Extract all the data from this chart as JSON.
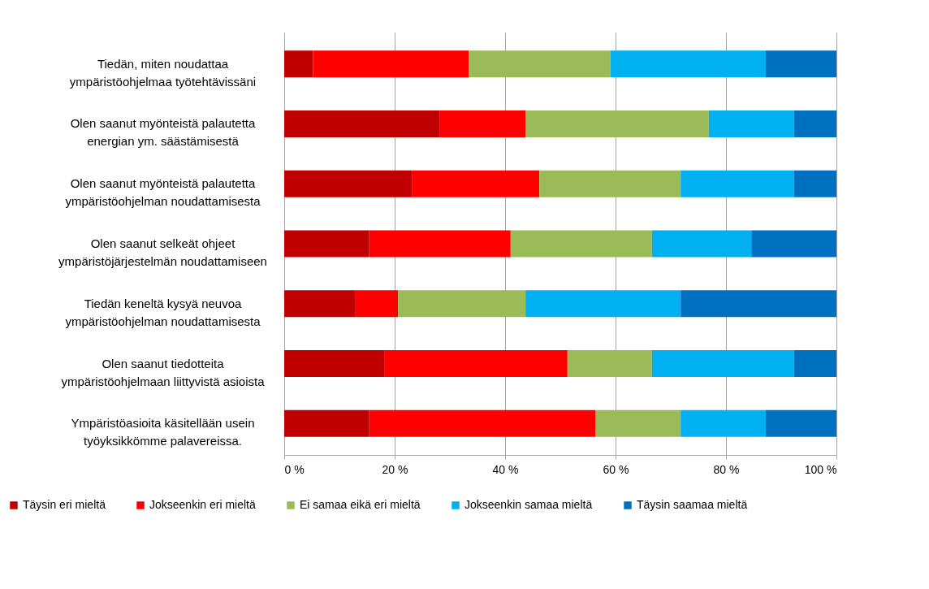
{
  "chart_data": {
    "type": "bar",
    "orientation": "horizontal",
    "stacked": true,
    "categories": [
      "Tiedän, miten noudattaa ympäristöohjelmaa työtehtävissäni",
      "Olen saanut myönteistä palautetta energian ym. säästämisestä",
      "Olen saanut myönteistä palautetta ympäristöohjelman noudattamisesta",
      "Olen saanut selkeät ohjeet ympäristöjärjestelmän noudattamiseen",
      "Tiedän keneltä kysyä neuvoa ympäristöohjelman noudattamisesta",
      "Olen saanut tiedotteita ympäristöohjelmaan liittyvistä asioista",
      "Ympäristöasioita käsitellään usein työyksikkömme palavereissa."
    ],
    "series": [
      {
        "name": "Täysin eri mieltä",
        "color": "#c00000",
        "values": [
          5.2,
          28.1,
          23.2,
          15.4,
          12.8,
          18.1,
          15.4
        ]
      },
      {
        "name": "Jokseenkin eri mieltä",
        "color": "#ff0000",
        "values": [
          28.2,
          15.6,
          23.0,
          25.6,
          7.8,
          33.2,
          41.0
        ]
      },
      {
        "name": "Ei samaa eikä eri mieltä",
        "color": "#9bbb59",
        "values": [
          25.7,
          33.2,
          25.6,
          25.6,
          23.1,
          15.3,
          15.4
        ]
      },
      {
        "name": "Jokseenkin samaa mieltä",
        "color": "#00b0f0",
        "values": [
          28.1,
          15.4,
          20.5,
          18.0,
          28.1,
          25.7,
          15.4
        ]
      },
      {
        "name": "Täysin saamaa mieltä",
        "color": "#0070c0",
        "values": [
          12.8,
          7.7,
          7.7,
          15.4,
          28.2,
          7.7,
          12.8
        ]
      }
    ],
    "xlim": [
      0,
      100
    ],
    "xticks": [
      {
        "value": 0,
        "label": "0 %"
      },
      {
        "value": 20,
        "label": "20 %"
      },
      {
        "value": 40,
        "label": "40 %"
      },
      {
        "value": 60,
        "label": "60 %"
      },
      {
        "value": 80,
        "label": "80 %"
      },
      {
        "value": 100,
        "label": "100 %"
      }
    ],
    "grid": "x",
    "legend": "bottom"
  }
}
